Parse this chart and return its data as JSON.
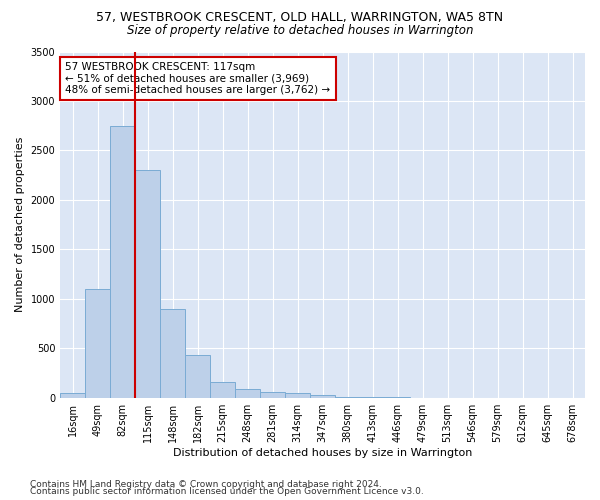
{
  "title1": "57, WESTBROOK CRESCENT, OLD HALL, WARRINGTON, WA5 8TN",
  "title2": "Size of property relative to detached houses in Warrington",
  "xlabel": "Distribution of detached houses by size in Warrington",
  "ylabel": "Number of detached properties",
  "categories": [
    "16sqm",
    "49sqm",
    "82sqm",
    "115sqm",
    "148sqm",
    "182sqm",
    "215sqm",
    "248sqm",
    "281sqm",
    "314sqm",
    "347sqm",
    "380sqm",
    "413sqm",
    "446sqm",
    "479sqm",
    "513sqm",
    "546sqm",
    "579sqm",
    "612sqm",
    "645sqm",
    "678sqm"
  ],
  "values": [
    50,
    1100,
    2750,
    2300,
    900,
    430,
    160,
    90,
    60,
    50,
    30,
    10,
    5,
    3,
    2,
    1,
    1,
    0,
    0,
    0,
    0
  ],
  "bar_color": "#bdd0e9",
  "bar_edge_color": "#7aabd4",
  "background_color": "#dce6f5",
  "grid_color": "#ffffff",
  "vline_x": 2.5,
  "vline_color": "#cc0000",
  "annotation_text": "57 WESTBROOK CRESCENT: 117sqm\n← 51% of detached houses are smaller (3,969)\n48% of semi-detached houses are larger (3,762) →",
  "annotation_box_facecolor": "#ffffff",
  "annotation_box_edgecolor": "#cc0000",
  "ylim": [
    0,
    3500
  ],
  "yticks": [
    0,
    500,
    1000,
    1500,
    2000,
    2500,
    3000,
    3500
  ],
  "footer1": "Contains HM Land Registry data © Crown copyright and database right 2024.",
  "footer2": "Contains public sector information licensed under the Open Government Licence v3.0.",
  "title1_fontsize": 9,
  "title2_fontsize": 8.5,
  "annot_fontsize": 7.5,
  "xlabel_fontsize": 8,
  "ylabel_fontsize": 8,
  "tick_fontsize": 7,
  "footer_fontsize": 6.5
}
